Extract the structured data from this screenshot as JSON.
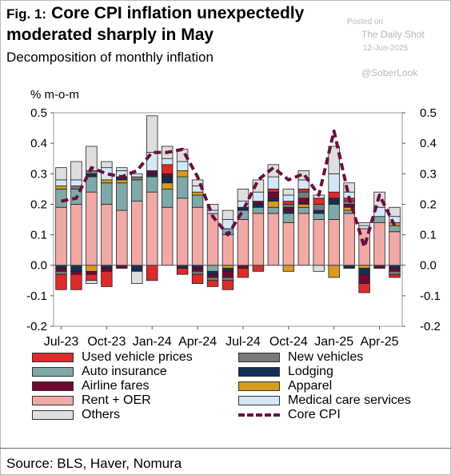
{
  "header": {
    "fig_label": "Fig. 1:",
    "title": "Core CPI inflation unexpectedly moderated sharply in May",
    "subtitle": "Decomposition of monthly inflation"
  },
  "watermark": {
    "posted_on": "Posted on",
    "publisher": "The Daily Shot",
    "date": "12-Jun-2025",
    "handle": "@SoberLook"
  },
  "footer": {
    "source": "Source: BLS, Haver, Nomura"
  },
  "colors": {
    "used_vehicle": "#dc2b2b",
    "new_vehicles": "#7a7a7a",
    "auto_insurance": "#7fa9a9",
    "lodging": "#142f55",
    "airline_fares": "#6d0b32",
    "apparel": "#d99a1e",
    "rent_oer": "#f1a9a6",
    "medical": "#d4e7f7",
    "others": "#dedede",
    "core_cpi": "#6b0f3e"
  },
  "chart_data": {
    "type": "bar",
    "stacked": true,
    "unit_label": "% m-o-m",
    "ylim": [
      -0.2,
      0.5
    ],
    "yticks": [
      "0.5",
      "0.4",
      "0.3",
      "0.2",
      "0.1",
      "0.0",
      "-0.1",
      "-0.2"
    ],
    "ytick_values": [
      0.5,
      0.4,
      0.3,
      0.2,
      0.1,
      0.0,
      -0.1,
      -0.2
    ],
    "categories": [
      "Jul-23",
      "Aug-23",
      "Sep-23",
      "Oct-23",
      "Nov-23",
      "Dec-23",
      "Jan-24",
      "Feb-24",
      "Mar-24",
      "Apr-24",
      "May-24",
      "Jun-24",
      "Jul-24",
      "Aug-24",
      "Sep-24",
      "Oct-24",
      "Nov-24",
      "Dec-24",
      "Jan-25",
      "Feb-25",
      "Mar-25",
      "Apr-25",
      "May-25"
    ],
    "xtick_labels": [
      {
        "index": 0,
        "label": "Jul-23"
      },
      {
        "index": 3,
        "label": "Oct-23"
      },
      {
        "index": 6,
        "label": "Jan-24"
      },
      {
        "index": 9,
        "label": "Apr-24"
      },
      {
        "index": 12,
        "label": "Jul-24"
      },
      {
        "index": 15,
        "label": "Oct-24"
      },
      {
        "index": 18,
        "label": "Jan-25"
      },
      {
        "index": 21,
        "label": "Apr-25"
      }
    ],
    "legend": [
      {
        "key": "used_vehicle",
        "label": "Used vehicle prices"
      },
      {
        "key": "new_vehicles",
        "label": "New vehicles"
      },
      {
        "key": "auto_insurance",
        "label": "Auto insurance"
      },
      {
        "key": "lodging",
        "label": "Lodging"
      },
      {
        "key": "airline_fares",
        "label": "Airline fares"
      },
      {
        "key": "apparel",
        "label": "Apparel"
      },
      {
        "key": "rent_oer",
        "label": "Rent + OER"
      },
      {
        "key": "medical",
        "label": "Medical care services"
      },
      {
        "key": "others",
        "label": "Others"
      },
      {
        "key": "core_cpi",
        "label": "Core CPI",
        "line": true
      }
    ],
    "series": [
      {
        "key": "rent_oer",
        "name": "Rent + OER",
        "values": [
          0.19,
          0.2,
          0.24,
          0.2,
          0.18,
          0.21,
          0.24,
          0.19,
          0.22,
          0.19,
          0.17,
          0.1,
          0.15,
          0.17,
          0.17,
          0.14,
          0.17,
          0.15,
          0.15,
          0.17,
          0.12,
          0.14,
          0.11
        ]
      },
      {
        "key": "auto_insurance",
        "name": "Auto insurance",
        "values": [
          0.06,
          0.05,
          0.05,
          0.07,
          0.09,
          0.07,
          0.05,
          0.06,
          0.07,
          0.04,
          -0.02,
          0.02,
          0.03,
          0.02,
          0.02,
          0.03,
          0.02,
          0.02,
          0.05,
          0.01,
          0.0,
          0.02,
          0.02
        ]
      },
      {
        "key": "apparel",
        "name": "Apparel",
        "values": [
          0.01,
          0.0,
          -0.02,
          0.01,
          0.01,
          0.0,
          0.0,
          0.02,
          0.02,
          0.01,
          0.0,
          -0.01,
          0.0,
          0.0,
          0.02,
          -0.02,
          0.01,
          0.0,
          -0.04,
          0.01,
          -0.01,
          0.0,
          0.01
        ]
      },
      {
        "key": "lodging",
        "name": "Lodging",
        "values": [
          -0.01,
          -0.02,
          0.01,
          -0.01,
          0.01,
          -0.02,
          0.01,
          0.02,
          -0.01,
          -0.01,
          -0.01,
          -0.01,
          0.01,
          0.01,
          0.01,
          0.01,
          0.0,
          0.01,
          0.02,
          -0.01,
          -0.02,
          0.0,
          -0.01
        ]
      },
      {
        "key": "airline_fares",
        "name": "Airline fares",
        "values": [
          -0.01,
          -0.01,
          -0.01,
          -0.01,
          -0.01,
          0.0,
          0.01,
          0.01,
          0.0,
          -0.01,
          -0.01,
          -0.02,
          -0.01,
          0.01,
          0.02,
          0.01,
          0.02,
          0.0,
          0.0,
          0.01,
          -0.03,
          -0.01,
          -0.01
        ]
      },
      {
        "key": "new_vehicles",
        "name": "New vehicles",
        "values": [
          -0.01,
          0.01,
          0.01,
          0.0,
          0.0,
          0.01,
          0.0,
          0.0,
          0.0,
          -0.01,
          -0.01,
          -0.01,
          0.0,
          0.0,
          0.0,
          0.01,
          0.02,
          0.02,
          0.0,
          0.01,
          0.0,
          0.0,
          -0.01
        ]
      },
      {
        "key": "used_vehicle",
        "name": "Used vehicle prices",
        "values": [
          -0.05,
          -0.05,
          -0.02,
          -0.05,
          0.0,
          0.0,
          -0.05,
          0.03,
          -0.02,
          -0.03,
          -0.02,
          -0.03,
          -0.03,
          -0.02,
          0.01,
          0.01,
          0.01,
          0.02,
          0.02,
          0.01,
          -0.03,
          0.0,
          -0.01
        ]
      },
      {
        "key": "medical",
        "name": "Medical care services",
        "values": [
          0.02,
          0.02,
          -0.01,
          0.04,
          0.02,
          0.01,
          0.06,
          0.02,
          0.03,
          0.02,
          0.01,
          0.03,
          0.02,
          0.03,
          0.04,
          0.02,
          0.03,
          0.01,
          0.06,
          0.02,
          0.01,
          0.03,
          0.02
        ]
      },
      {
        "key": "others",
        "name": "Others",
        "values": [
          0.04,
          0.06,
          0.08,
          0.02,
          0.01,
          -0.04,
          0.12,
          0.04,
          0.04,
          0.02,
          0.02,
          0.03,
          0.04,
          0.04,
          0.04,
          0.02,
          0.03,
          -0.02,
          0.09,
          0.03,
          0.01,
          0.05,
          0.03
        ]
      }
    ],
    "line": {
      "key": "core_cpi",
      "name": "Core CPI",
      "values": [
        0.21,
        0.22,
        0.32,
        0.3,
        0.29,
        0.31,
        0.37,
        0.37,
        0.38,
        0.29,
        0.16,
        0.1,
        0.18,
        0.28,
        0.32,
        0.28,
        0.3,
        0.23,
        0.44,
        0.22,
        0.06,
        0.23,
        0.13
      ]
    }
  }
}
